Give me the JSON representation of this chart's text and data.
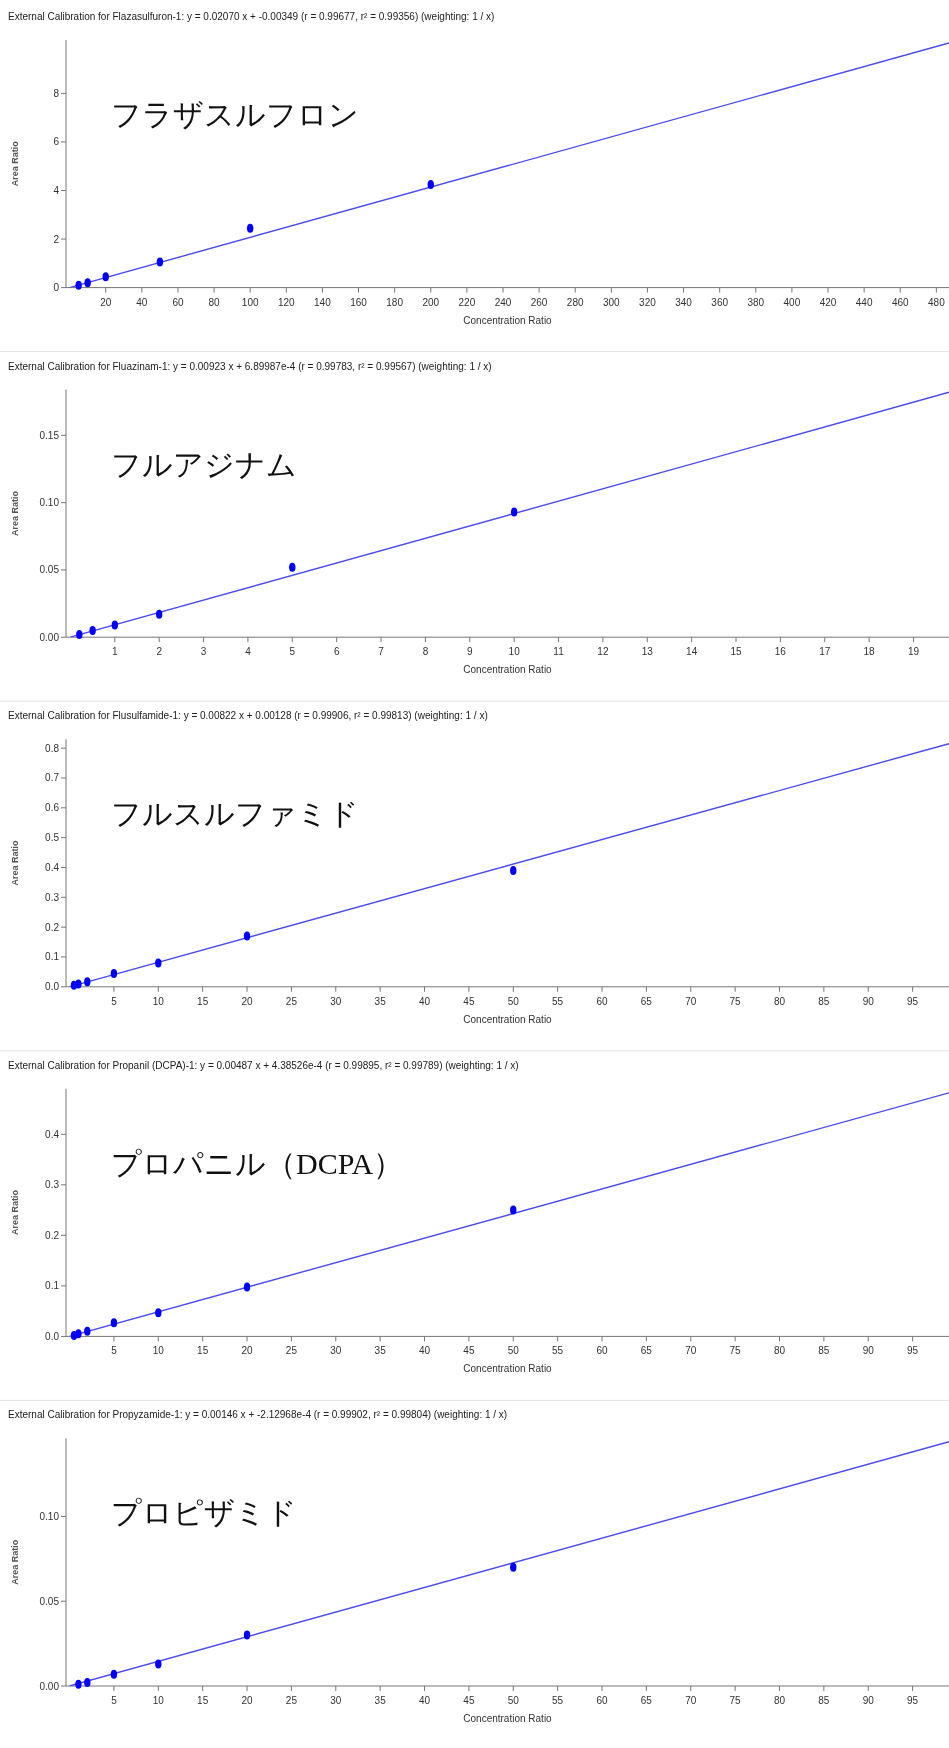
{
  "chart_data": [
    {
      "type": "scatter",
      "title": "External Calibration for Flazasulfuron-1: y = 0.02070 x + -0.00349 (r = 0.99677, r² = 0.99356) (weighting: 1 / x)",
      "xlabel": "Concentration Ratio",
      "ylabel": "Area Ratio",
      "annotations": [
        "フラザスルフロン"
      ],
      "series": [
        {
          "marker": "circle",
          "color": "#0000ff",
          "x": [
            5,
            10,
            20,
            50,
            100,
            200
          ],
          "values": [
            0.1,
            0.2,
            0.45,
            1.05,
            2.45,
            4.25
          ]
        },
        {
          "type": "line",
          "color": "#4a4af0",
          "x": [
            0,
            487
          ],
          "values": [
            0,
            10.08
          ]
        }
      ],
      "xlim": [
        -2,
        487
      ],
      "xticks": [
        20,
        40,
        60,
        80,
        100,
        120,
        140,
        160,
        180,
        200,
        220,
        240,
        260,
        280,
        300,
        320,
        340,
        360,
        380,
        400,
        420,
        440,
        460,
        480
      ],
      "ylim": [
        0,
        10.2
      ],
      "yticks": [
        0,
        2,
        4,
        6,
        8
      ]
    },
    {
      "type": "scatter",
      "title": "External Calibration for Fluazinam-1: y = 0.00923 x + 6.89987e-4 (r = 0.99783, r² = 0.99567) (weighting: 1 / x)",
      "xlabel": "Concentration Ratio",
      "ylabel": "Area Ratio",
      "annotations": [
        "フルアジナム"
      ],
      "series": [
        {
          "marker": "circle",
          "color": "#0000ff",
          "x": [
            0.2,
            0.5,
            1,
            2,
            5,
            10
          ],
          "values": [
            0.002,
            0.005,
            0.009,
            0.017,
            0.052,
            0.093
          ]
        },
        {
          "type": "line",
          "color": "#4a4af0",
          "x": [
            0,
            19.8
          ],
          "values": [
            0,
            0.182
          ]
        }
      ],
      "xlim": [
        -0.1,
        19.8
      ],
      "xticks": [
        1,
        2,
        3,
        4,
        5,
        6,
        7,
        8,
        9,
        10,
        11,
        12,
        13,
        14,
        15,
        16,
        17,
        18,
        19
      ],
      "ylim": [
        0,
        0.184
      ],
      "yticks": [
        {
          "value": 0,
          "label": "0.00"
        },
        {
          "value": 0.05,
          "label": "0.05"
        },
        {
          "value": 0.1,
          "label": "0.10"
        },
        {
          "value": 0.15,
          "label": "0.15"
        }
      ]
    },
    {
      "type": "scatter",
      "title": "External Calibration for Flusulfamide-1: y = 0.00822 x + 0.00128 (r = 0.99906, r² = 0.99813) (weighting: 1 / x)",
      "xlabel": "Concentration Ratio",
      "ylabel": "Area Ratio",
      "annotations": [
        "フルスルファミド"
      ],
      "series": [
        {
          "marker": "circle",
          "color": "#0000ff",
          "x": [
            0.5,
            1,
            2,
            5,
            10,
            20,
            50
          ],
          "values": [
            0.005,
            0.009,
            0.017,
            0.045,
            0.08,
            0.17,
            0.39
          ]
        },
        {
          "type": "line",
          "color": "#4a4af0",
          "x": [
            0,
            99.1
          ],
          "values": [
            0,
            0.815
          ]
        }
      ],
      "xlim": [
        -0.4,
        99.1
      ],
      "xticks": [
        5,
        10,
        15,
        20,
        25,
        30,
        35,
        40,
        45,
        50,
        55,
        60,
        65,
        70,
        75,
        80,
        85,
        90,
        95
      ],
      "ylim": [
        0,
        0.83
      ],
      "yticks": [
        {
          "value": 0,
          "label": "0.0"
        },
        {
          "value": 0.1,
          "label": "0.1"
        },
        {
          "value": 0.2,
          "label": "0.2"
        },
        {
          "value": 0.3,
          "label": "0.3"
        },
        {
          "value": 0.4,
          "label": "0.4"
        },
        {
          "value": 0.5,
          "label": "0.5"
        },
        {
          "value": 0.6,
          "label": "0.6"
        },
        {
          "value": 0.7,
          "label": "0.7"
        },
        {
          "value": 0.8,
          "label": "0.8"
        }
      ]
    },
    {
      "type": "scatter",
      "title": "External Calibration for Propanil (DCPA)-1: y = 0.00487 x + 4.38526e-4 (r = 0.99895, r² = 0.99789) (weighting: 1 / x)",
      "xlabel": "Concentration Ratio",
      "ylabel": "Area Ratio",
      "annotations": [
        "プロパニル（DCPA）"
      ],
      "series": [
        {
          "marker": "circle",
          "color": "#0000ff",
          "x": [
            0.5,
            1,
            2,
            5,
            10,
            20,
            50
          ],
          "values": [
            0.002,
            0.005,
            0.01,
            0.027,
            0.047,
            0.098,
            0.25
          ]
        },
        {
          "type": "line",
          "color": "#4a4af0",
          "x": [
            0,
            99.1
          ],
          "values": [
            0,
            0.482
          ]
        }
      ],
      "xlim": [
        -0.4,
        99.1
      ],
      "xticks": [
        5,
        10,
        15,
        20,
        25,
        30,
        35,
        40,
        45,
        50,
        55,
        60,
        65,
        70,
        75,
        80,
        85,
        90,
        95
      ],
      "ylim": [
        0,
        0.49
      ],
      "yticks": [
        {
          "value": 0,
          "label": "0.0"
        },
        {
          "value": 0.1,
          "label": "0.1"
        },
        {
          "value": 0.2,
          "label": "0.2"
        },
        {
          "value": 0.3,
          "label": "0.3"
        },
        {
          "value": 0.4,
          "label": "0.4"
        }
      ]
    },
    {
      "type": "scatter",
      "title": "External Calibration for Propyzamide-1: y = 0.00146 x + -2.12968e-4 (r = 0.99902, r² = 0.99804) (weighting: 1 / x)",
      "xlabel": "Concentration Ratio",
      "ylabel": "Area Ratio",
      "annotations": [
        "プロピザミド"
      ],
      "series": [
        {
          "marker": "circle",
          "color": "#0000ff",
          "x": [
            1,
            2,
            5,
            10,
            20,
            50
          ],
          "values": [
            0.001,
            0.002,
            0.007,
            0.013,
            0.03,
            0.07
          ]
        },
        {
          "type": "line",
          "color": "#4a4af0",
          "x": [
            0,
            99.1
          ],
          "values": [
            0,
            0.144
          ]
        }
      ],
      "xlim": [
        -0.4,
        99.1
      ],
      "xticks": [
        5,
        10,
        15,
        20,
        25,
        30,
        35,
        40,
        45,
        50,
        55,
        60,
        65,
        70,
        75,
        80,
        85,
        90,
        95
      ],
      "ylim": [
        0,
        0.146
      ],
      "yticks": [
        {
          "value": 0,
          "label": "0.00"
        },
        {
          "value": 0.05,
          "label": "0.05"
        },
        {
          "value": 0.1,
          "label": "0.10"
        }
      ]
    }
  ]
}
